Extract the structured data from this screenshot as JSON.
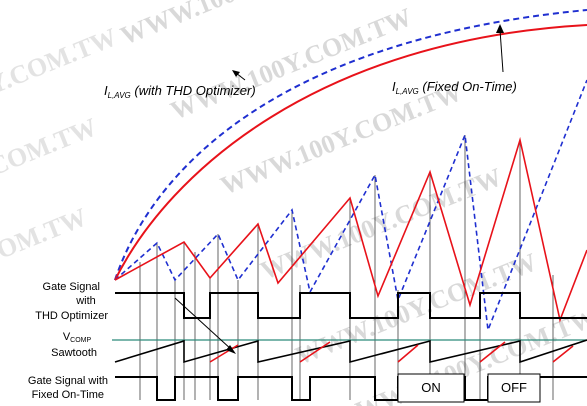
{
  "watermark": "WWW.100Y.COM.TW",
  "annotations": {
    "thd_main": "I",
    "thd_sub": "L,AVG",
    "thd_rest": " (with THD Optimizer)",
    "fixed_main": "I",
    "fixed_sub": "L,AVG",
    "fixed_rest": " (Fixed On-Time)"
  },
  "row_labels": {
    "gate_thd_line1": "Gate Signal",
    "gate_thd_line2": "with",
    "gate_thd_line3": "THD Optimizer",
    "vcomp_main": "V",
    "vcomp_sub": "COMP",
    "sawtooth": "Sawtooth",
    "gate_fixed_line1": "Gate Signal with",
    "gate_fixed_line2": "Fixed On-Time"
  },
  "boxes": {
    "on": "ON",
    "off": "OFF"
  },
  "colors": {
    "thd_curve": "#e8121a",
    "fixed_curve": "#1f2fd0",
    "vcomp_line": "#2c8a7a",
    "signal": "#000000",
    "watermark": "#d9d9d9"
  }
}
